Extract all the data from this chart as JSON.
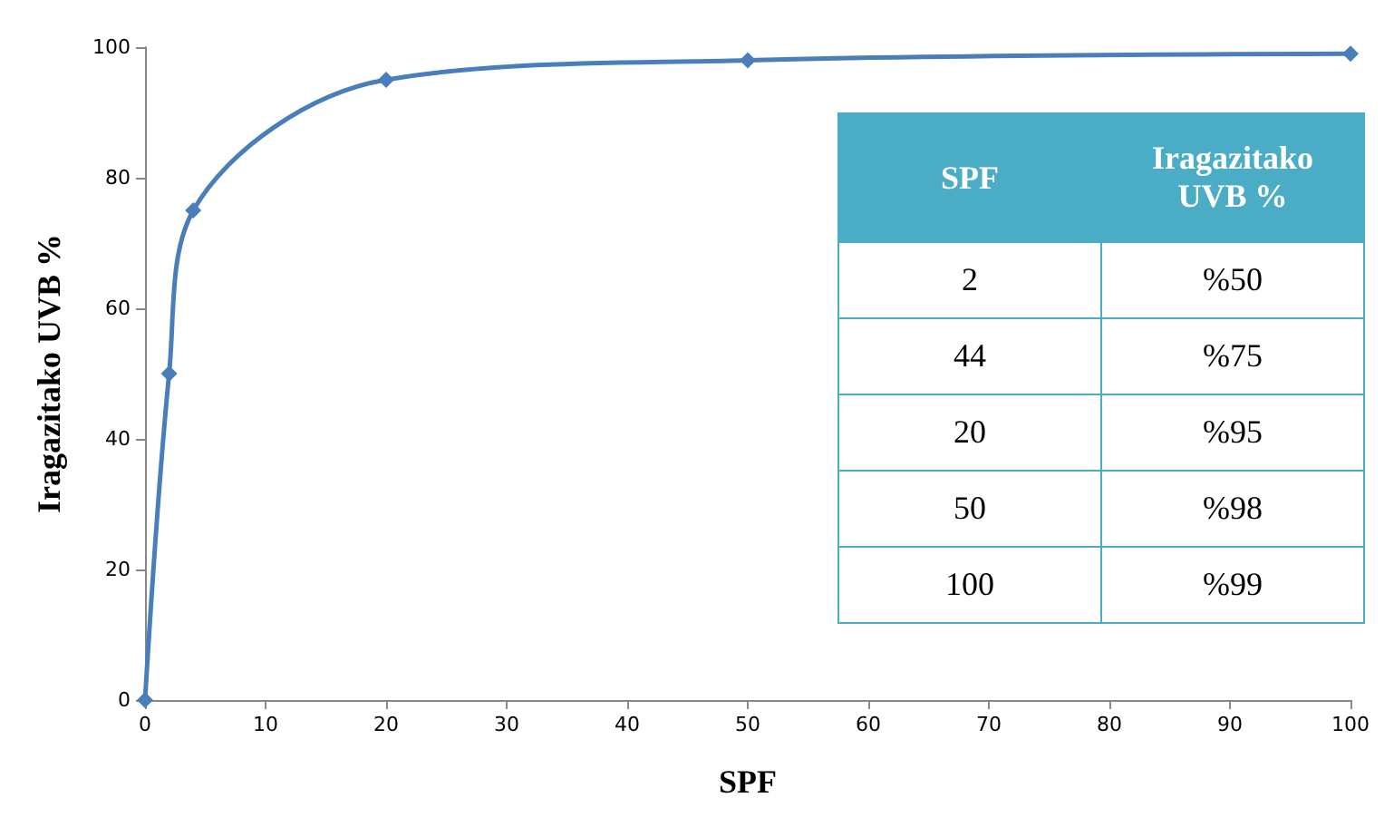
{
  "chart_data": {
    "type": "line",
    "xlabel": "SPF",
    "ylabel": "Iragazitako UVB %",
    "x": [
      0,
      2,
      4,
      20,
      50,
      100
    ],
    "series": [
      {
        "color": "#4a7ebb",
        "values": [
          0,
          50,
          75,
          95,
          98,
          99
        ]
      }
    ],
    "xlim": [
      0,
      100
    ],
    "xticks": [
      0,
      10,
      20,
      30,
      40,
      50,
      60,
      70,
      80,
      90,
      100
    ],
    "ylim": [
      0,
      100
    ],
    "yticks": [
      0,
      20,
      40,
      60,
      80,
      100
    ],
    "grid": false,
    "marker": "diamond",
    "line_style": "solid",
    "annotations": [
      "SPF",
      "Iragazitako UVB %",
      "2",
      "%50",
      "44",
      "%75",
      "20",
      "%95",
      "50",
      "%98",
      "100",
      "%99"
    ]
  }
}
